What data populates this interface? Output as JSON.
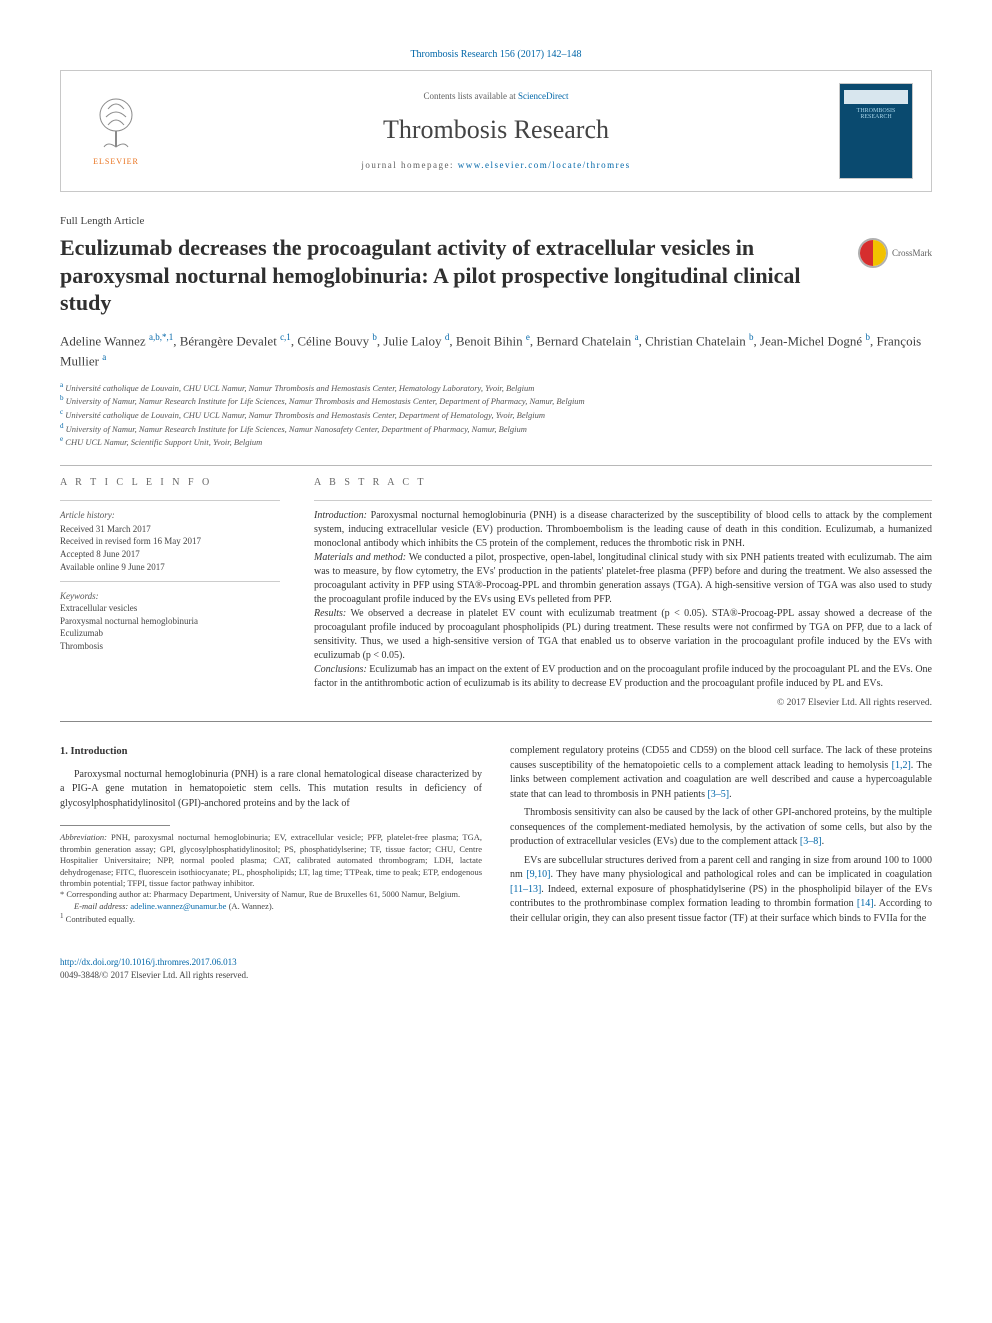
{
  "top_citation": "Thrombosis Research 156 (2017) 142–148",
  "header": {
    "contents_prefix": "Contents lists available at ",
    "contents_link": "ScienceDirect",
    "journal": "Thrombosis Research",
    "homepage_prefix": "journal homepage: ",
    "homepage_link": "www.elsevier.com/locate/thromres",
    "cover_text": "THROMBOSIS RESEARCH",
    "publisher_brand": "ELSEVIER"
  },
  "article_type": "Full Length Article",
  "title": "Eculizumab decreases the procoagulant activity of extracellular vesicles in paroxysmal nocturnal hemoglobinuria: A pilot prospective longitudinal clinical study",
  "crossmark_label": "CrossMark",
  "authors_html": "Adeline Wannez <sup>a,b,*,1</sup>, Bérangère Devalet <sup>c,1</sup>, Céline Bouvy <sup>b</sup>, Julie Laloy <sup>d</sup>, Benoit Bihin <sup>e</sup>, Bernard Chatelain <sup>a</sup>, Christian Chatelain <sup>b</sup>, Jean-Michel Dogné <sup>b</sup>, François Mullier <sup>a</sup>",
  "affiliations": [
    {
      "key": "a",
      "text": "Université catholique de Louvain, CHU UCL Namur, Namur Thrombosis and Hemostasis Center, Hematology Laboratory, Yvoir, Belgium"
    },
    {
      "key": "b",
      "text": "University of Namur, Namur Research Institute for Life Sciences, Namur Thrombosis and Hemostasis Center, Department of Pharmacy, Namur, Belgium"
    },
    {
      "key": "c",
      "text": "Université catholique de Louvain, CHU UCL Namur, Namur Thrombosis and Hemostasis Center, Department of Hematology, Yvoir, Belgium"
    },
    {
      "key": "d",
      "text": "University of Namur, Namur Research Institute for Life Sciences, Namur Nanosafety Center, Department of Pharmacy, Namur, Belgium"
    },
    {
      "key": "e",
      "text": "CHU UCL Namur, Scientific Support Unit, Yvoir, Belgium"
    }
  ],
  "article_info_heading": "A R T I C L E   I N F O",
  "abstract_heading": "A B S T R A C T",
  "history": {
    "label": "Article history:",
    "received": "Received 31 March 2017",
    "revised": "Received in revised form 16 May 2017",
    "accepted": "Accepted 8 June 2017",
    "online": "Available online 9 June 2017"
  },
  "keywords": {
    "label": "Keywords:",
    "items": [
      "Extracellular vesicles",
      "Paroxysmal nocturnal hemoglobinuria",
      "Eculizumab",
      "Thrombosis"
    ]
  },
  "abstract": {
    "intro_label": "Introduction:",
    "intro": " Paroxysmal nocturnal hemoglobinuria (PNH) is a disease characterized by the susceptibility of blood cells to attack by the complement system, inducing extracellular vesicle (EV) production. Thromboembolism is the leading cause of death in this condition. Eculizumab, a humanized monoclonal antibody which inhibits the C5 protein of the complement, reduces the thrombotic risk in PNH.",
    "methods_label": "Materials and method:",
    "methods": " We conducted a pilot, prospective, open-label, longitudinal clinical study with six PNH patients treated with eculizumab. The aim was to measure, by flow cytometry, the EVs' production in the patients' platelet-free plasma (PFP) before and during the treatment. We also assessed the procoagulant activity in PFP using STA®-Procoag-PPL and thrombin generation assays (TGA). A high-sensitive version of TGA was also used to study the procoagulant profile induced by the EVs using EVs pelleted from PFP.",
    "results_label": "Results:",
    "results": " We observed a decrease in platelet EV count with eculizumab treatment (p < 0.05). STA®-Procoag-PPL assay showed a decrease of the procoagulant profile induced by procoagulant phospholipids (PL) during treatment. These results were not confirmed by TGA on PFP, due to a lack of sensitivity. Thus, we used a high-sensitive version of TGA that enabled us to observe variation in the procoagulant profile induced by the EVs with eculizumab (p < 0.05).",
    "conclusions_label": "Conclusions:",
    "conclusions": " Eculizumab has an impact on the extent of EV production and on the procoagulant profile induced by the procoagulant PL and the EVs. One factor in the antithrombotic action of eculizumab is its ability to decrease EV production and the procoagulant profile induced by PL and EVs.",
    "copyright": "© 2017 Elsevier Ltd. All rights reserved."
  },
  "section1_heading": "1. Introduction",
  "body_left_p1": "Paroxysmal nocturnal hemoglobinuria (PNH) is a rare clonal hematological disease characterized by a PIG-A gene mutation in hematopoietic stem cells. This mutation results in deficiency of glycosylphosphatidylinositol (GPI)-anchored proteins and by the lack of",
  "body_right_p1a": "complement regulatory proteins (CD55 and CD59) on the blood cell surface. The lack of these proteins causes susceptibility of the hematopoietic cells to a complement attack leading to hemolysis ",
  "body_right_ref1": "[1,2]",
  "body_right_p1b": ". The links between complement activation and coagulation are well described and cause a hypercoagulable state that can lead to thrombosis in PNH patients ",
  "body_right_ref2": "[3–5]",
  "body_right_p1c": ".",
  "body_right_p2a": "Thrombosis sensitivity can also be caused by the lack of other GPI-anchored proteins, by the multiple consequences of the complement-mediated hemolysis, by the activation of some cells, but also by the production of extracellular vesicles (EVs) due to the complement attack ",
  "body_right_ref3": "[3–8]",
  "body_right_p2b": ".",
  "body_right_p3a": "EVs are subcellular structures derived from a parent cell and ranging in size from around 100 to 1000 nm ",
  "body_right_ref4": "[9,10]",
  "body_right_p3b": ". They have many physiological and pathological roles and can be implicated in coagulation ",
  "body_right_ref5": "[11–13]",
  "body_right_p3c": ". Indeed, external exposure of phosphatidylserine (PS) in the phospholipid bilayer of the EVs contributes to the prothrombinase complex formation leading to thrombin formation ",
  "body_right_ref6": "[14]",
  "body_right_p3d": ". According to their cellular origin, they can also present tissue factor (TF) at their surface which binds to FVIIa for the",
  "footnotes": {
    "abbrev_label": "Abbreviation:",
    "abbrev": " PNH, paroxysmal nocturnal hemoglobinuria; EV, extracellular vesicle; PFP, platelet-free plasma; TGA, thrombin generation assay; GPI, glycosylphosphatidylinositol; PS, phosphatidylserine; TF, tissue factor; CHU, Centre Hospitalier Universitaire; NPP, normal pooled plasma; CAT, calibrated automated thrombogram; LDH, lactate dehydrogenase; FITC, fluorescein isothiocyanate; PL, phospholipids; LT, lag time; TTPeak, time to peak; ETP, endogenous thrombin potential; TFPI, tissue factor pathway inhibitor.",
    "corr_mark": "*",
    "corr": " Corresponding author at: Pharmacy Department, University of Namur, Rue de Bruxelles 61, 5000 Namur, Belgium.",
    "email_label": "E-mail address:",
    "email": "adeline.wannez@unamur.be",
    "email_suffix": " (A. Wannez).",
    "eq_mark": "1",
    "eq": " Contributed equally."
  },
  "footer": {
    "doi": "http://dx.doi.org/10.1016/j.thromres.2017.06.013",
    "issn_line": "0049-3848/© 2017 Elsevier Ltd. All rights reserved."
  },
  "colors": {
    "link": "#0066a8",
    "text": "#242424",
    "rule": "#b8b8b8",
    "brand_orange": "#e9711c",
    "cover_bg": "#0a4a6f"
  }
}
